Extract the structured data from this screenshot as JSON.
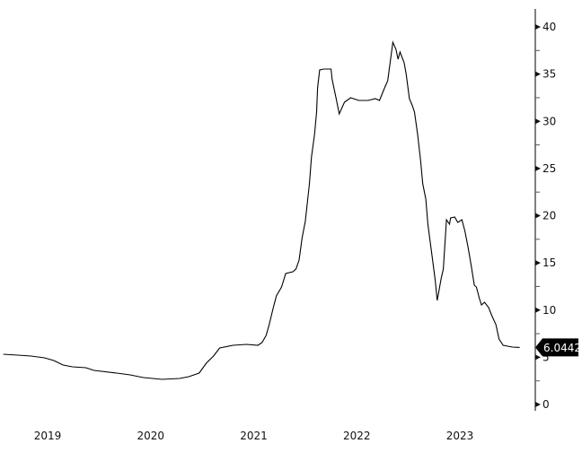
{
  "chart_data": {
    "type": "line",
    "title": "",
    "xlabel": "",
    "ylabel": "",
    "x_tick_labels": [
      "2019",
      "2020",
      "2021",
      "2022",
      "2023"
    ],
    "y_ticks": [
      0,
      5,
      10,
      15,
      20,
      25,
      30,
      35,
      40
    ],
    "ylim": [
      0,
      40
    ],
    "y_axis_side": "right",
    "grid": false,
    "last_value_label": "6.0442",
    "line_color": "#000000",
    "label_bg_color": "#000000",
    "label_text_color": "#ffffff",
    "series": [
      {
        "x": [
          2019.07,
          2019.21,
          2019.34,
          2019.47,
          2019.56,
          2019.65,
          2019.74,
          2019.87,
          2019.95,
          2020.17,
          2020.3,
          2020.43,
          2020.61,
          2020.78,
          2020.87,
          2020.97,
          2021.04,
          2021.11,
          2021.17,
          2021.3,
          2021.43,
          2021.54,
          2021.58,
          2021.62,
          2021.65,
          2021.69,
          2021.72,
          2021.77,
          2021.81,
          2021.88,
          2021.91,
          2021.94,
          2021.97,
          2022.0,
          2022.04,
          2022.06,
          2022.09,
          2022.11,
          2022.12,
          2022.14,
          2022.18,
          2022.25,
          2022.26,
          2022.3,
          2022.33,
          2022.38,
          2022.44,
          2022.52,
          2022.61,
          2022.68,
          2022.72,
          2022.77,
          2022.8,
          2022.85,
          2022.88,
          2022.9,
          2022.92,
          2022.96,
          2022.98,
          2023.01,
          2023.04,
          2023.06,
          2023.09,
          2023.12,
          2023.14,
          2023.17,
          2023.19,
          2023.23,
          2023.26,
          2023.28,
          2023.32,
          2023.34,
          2023.37,
          2023.4,
          2023.41,
          2023.45,
          2023.48,
          2023.52,
          2023.55,
          2023.58,
          2023.61,
          2023.64,
          2023.66,
          2023.69,
          2023.71,
          2023.74,
          2023.78,
          2023.81,
          2023.85,
          2023.88,
          2023.92,
          2024.01,
          2024.08
        ],
        "y": [
          5.32,
          5.23,
          5.13,
          4.94,
          4.66,
          4.18,
          3.99,
          3.9,
          3.61,
          3.33,
          3.14,
          2.85,
          2.66,
          2.76,
          2.95,
          3.33,
          4.37,
          5.13,
          5.99,
          6.27,
          6.37,
          6.27,
          6.56,
          7.32,
          8.46,
          10.26,
          11.5,
          12.45,
          13.87,
          14.06,
          14.35,
          15.3,
          17.67,
          19.38,
          23.37,
          26.22,
          28.6,
          30.97,
          33.54,
          35.44,
          35.53,
          35.53,
          34.49,
          32.4,
          30.78,
          32.02,
          32.49,
          32.21,
          32.21,
          32.4,
          32.21,
          33.54,
          34.3,
          38.38,
          37.62,
          36.58,
          37.34,
          36.2,
          34.96,
          32.4,
          31.64,
          30.97,
          28.6,
          25.75,
          23.37,
          21.76,
          19.1,
          15.77,
          13.21,
          11.02,
          13.4,
          14.35,
          19.57,
          19.1,
          19.76,
          19.86,
          19.29,
          19.57,
          18.34,
          16.63,
          14.73,
          12.64,
          12.45,
          11.21,
          10.55,
          10.83,
          10.26,
          9.41,
          8.46,
          6.94,
          6.27,
          6.08,
          6.0442
        ]
      }
    ]
  }
}
